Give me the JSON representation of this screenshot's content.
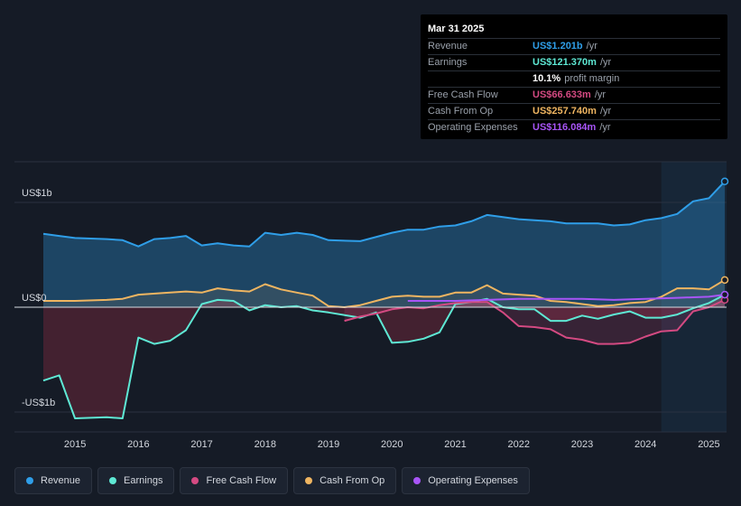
{
  "tooltip": {
    "date": "Mar 31 2025",
    "rows": [
      {
        "label": "Revenue",
        "value": "US$1.201b",
        "unit": "/yr",
        "color": "#2f9ee8"
      },
      {
        "label": "Earnings",
        "value": "US$121.370m",
        "unit": "/yr",
        "color": "#5ee8d4"
      },
      {
        "label": "",
        "value": "10.1%",
        "unit": "profit margin",
        "color": "#ffffff"
      },
      {
        "label": "Free Cash Flow",
        "value": "US$66.633m",
        "unit": "/yr",
        "color": "#d44a82"
      },
      {
        "label": "Cash From Op",
        "value": "US$257.740m",
        "unit": "/yr",
        "color": "#efb561"
      },
      {
        "label": "Operating Expenses",
        "value": "US$116.084m",
        "unit": "/yr",
        "color": "#a855f7"
      }
    ]
  },
  "legend": [
    {
      "label": "Revenue",
      "color": "#2f9ee8"
    },
    {
      "label": "Earnings",
      "color": "#5ee8d4"
    },
    {
      "label": "Free Cash Flow",
      "color": "#d44a82"
    },
    {
      "label": "Cash From Op",
      "color": "#efb561"
    },
    {
      "label": "Operating Expenses",
      "color": "#a855f7"
    }
  ],
  "chart_data": {
    "type": "area",
    "title": "",
    "y_unit": "US$ billions",
    "ylim": [
      -1.1,
      1.4
    ],
    "xlim": [
      2014.5,
      2025.25
    ],
    "y_tick_labels": [
      {
        "value": 1,
        "label": "US$1b"
      },
      {
        "value": 0,
        "label": "US$0"
      },
      {
        "value": -1,
        "label": "-US$1b"
      }
    ],
    "x_ticks": [
      2015,
      2016,
      2017,
      2018,
      2019,
      2020,
      2021,
      2022,
      2023,
      2024,
      2025
    ],
    "x_tick_labels": [
      "2015",
      "2016",
      "2017",
      "2018",
      "2019",
      "2020",
      "2021",
      "2022",
      "2023",
      "2024",
      "2025"
    ],
    "highlight_from": 2024.25,
    "series": [
      {
        "name": "Revenue",
        "color": "#2f9ee8",
        "points": [
          [
            2014.5,
            0.7
          ],
          [
            2014.75,
            0.68
          ],
          [
            2015.0,
            0.66
          ],
          [
            2015.5,
            0.65
          ],
          [
            2015.75,
            0.64
          ],
          [
            2016.0,
            0.58
          ],
          [
            2016.25,
            0.65
          ],
          [
            2016.5,
            0.66
          ],
          [
            2016.75,
            0.68
          ],
          [
            2017.0,
            0.59
          ],
          [
            2017.25,
            0.61
          ],
          [
            2017.5,
            0.59
          ],
          [
            2017.75,
            0.58
          ],
          [
            2018.0,
            0.71
          ],
          [
            2018.25,
            0.69
          ],
          [
            2018.5,
            0.71
          ],
          [
            2018.75,
            0.69
          ],
          [
            2019.0,
            0.64
          ],
          [
            2019.5,
            0.63
          ],
          [
            2020.0,
            0.71
          ],
          [
            2020.25,
            0.74
          ],
          [
            2020.5,
            0.74
          ],
          [
            2020.75,
            0.77
          ],
          [
            2021.0,
            0.78
          ],
          [
            2021.25,
            0.82
          ],
          [
            2021.5,
            0.88
          ],
          [
            2021.75,
            0.86
          ],
          [
            2022.0,
            0.84
          ],
          [
            2022.5,
            0.82
          ],
          [
            2022.75,
            0.8
          ],
          [
            2023.0,
            0.8
          ],
          [
            2023.25,
            0.8
          ],
          [
            2023.5,
            0.78
          ],
          [
            2023.75,
            0.79
          ],
          [
            2024.0,
            0.83
          ],
          [
            2024.25,
            0.85
          ],
          [
            2024.5,
            0.89
          ],
          [
            2024.75,
            1.01
          ],
          [
            2025.0,
            1.04
          ],
          [
            2025.25,
            1.2
          ]
        ]
      },
      {
        "name": "Earnings",
        "color": "#5ee8d4",
        "points": [
          [
            2014.5,
            -0.7
          ],
          [
            2014.75,
            -0.65
          ],
          [
            2015.0,
            -1.06
          ],
          [
            2015.5,
            -1.05
          ],
          [
            2015.75,
            -1.06
          ],
          [
            2016.0,
            -0.29
          ],
          [
            2016.25,
            -0.35
          ],
          [
            2016.5,
            -0.32
          ],
          [
            2016.75,
            -0.22
          ],
          [
            2017.0,
            0.03
          ],
          [
            2017.25,
            0.07
          ],
          [
            2017.5,
            0.06
          ],
          [
            2017.75,
            -0.03
          ],
          [
            2018.0,
            0.02
          ],
          [
            2018.25,
            0.0
          ],
          [
            2018.5,
            0.01
          ],
          [
            2018.75,
            -0.03
          ],
          [
            2019.0,
            -0.05
          ],
          [
            2019.5,
            -0.1
          ],
          [
            2019.75,
            -0.05
          ],
          [
            2020.0,
            -0.34
          ],
          [
            2020.25,
            -0.33
          ],
          [
            2020.5,
            -0.3
          ],
          [
            2020.75,
            -0.24
          ],
          [
            2021.0,
            0.03
          ],
          [
            2021.25,
            0.05
          ],
          [
            2021.5,
            0.08
          ],
          [
            2021.75,
            0.0
          ],
          [
            2022.0,
            -0.02
          ],
          [
            2022.25,
            -0.02
          ],
          [
            2022.5,
            -0.13
          ],
          [
            2022.75,
            -0.13
          ],
          [
            2023.0,
            -0.08
          ],
          [
            2023.25,
            -0.11
          ],
          [
            2023.5,
            -0.07
          ],
          [
            2023.75,
            -0.04
          ],
          [
            2024.0,
            -0.1
          ],
          [
            2024.25,
            -0.1
          ],
          [
            2024.5,
            -0.07
          ],
          [
            2024.75,
            -0.01
          ],
          [
            2025.0,
            0.04
          ],
          [
            2025.25,
            0.12
          ]
        ]
      },
      {
        "name": "Free Cash Flow",
        "color": "#d44a82",
        "points": [
          [
            2019.25,
            -0.13
          ],
          [
            2019.5,
            -0.09
          ],
          [
            2019.75,
            -0.06
          ],
          [
            2020.0,
            -0.02
          ],
          [
            2020.25,
            0.0
          ],
          [
            2020.5,
            -0.01
          ],
          [
            2020.75,
            0.02
          ],
          [
            2021.0,
            0.04
          ],
          [
            2021.25,
            0.05
          ],
          [
            2021.5,
            0.05
          ],
          [
            2021.75,
            -0.05
          ],
          [
            2022.0,
            -0.18
          ],
          [
            2022.25,
            -0.19
          ],
          [
            2022.5,
            -0.21
          ],
          [
            2022.75,
            -0.29
          ],
          [
            2023.0,
            -0.31
          ],
          [
            2023.25,
            -0.35
          ],
          [
            2023.5,
            -0.35
          ],
          [
            2023.75,
            -0.34
          ],
          [
            2024.0,
            -0.28
          ],
          [
            2024.25,
            -0.23
          ],
          [
            2024.5,
            -0.22
          ],
          [
            2024.75,
            -0.04
          ],
          [
            2025.0,
            0.0
          ],
          [
            2025.25,
            0.07
          ]
        ]
      },
      {
        "name": "Cash From Op",
        "color": "#efb561",
        "points": [
          [
            2014.5,
            0.06
          ],
          [
            2014.75,
            0.06
          ],
          [
            2015.0,
            0.06
          ],
          [
            2015.5,
            0.07
          ],
          [
            2015.75,
            0.08
          ],
          [
            2016.0,
            0.12
          ],
          [
            2016.5,
            0.14
          ],
          [
            2016.75,
            0.15
          ],
          [
            2017.0,
            0.14
          ],
          [
            2017.25,
            0.18
          ],
          [
            2017.5,
            0.16
          ],
          [
            2017.75,
            0.15
          ],
          [
            2018.0,
            0.22
          ],
          [
            2018.25,
            0.17
          ],
          [
            2018.5,
            0.14
          ],
          [
            2018.75,
            0.11
          ],
          [
            2019.0,
            0.01
          ],
          [
            2019.25,
            0.0
          ],
          [
            2019.5,
            0.02
          ],
          [
            2019.75,
            0.06
          ],
          [
            2020.0,
            0.1
          ],
          [
            2020.25,
            0.11
          ],
          [
            2020.5,
            0.1
          ],
          [
            2020.75,
            0.1
          ],
          [
            2021.0,
            0.14
          ],
          [
            2021.25,
            0.14
          ],
          [
            2021.5,
            0.21
          ],
          [
            2021.75,
            0.13
          ],
          [
            2022.0,
            0.12
          ],
          [
            2022.25,
            0.11
          ],
          [
            2022.5,
            0.06
          ],
          [
            2022.75,
            0.05
          ],
          [
            2023.0,
            0.03
          ],
          [
            2023.25,
            0.01
          ],
          [
            2023.5,
            0.02
          ],
          [
            2023.75,
            0.04
          ],
          [
            2024.0,
            0.05
          ],
          [
            2024.25,
            0.1
          ],
          [
            2024.5,
            0.18
          ],
          [
            2024.75,
            0.18
          ],
          [
            2025.0,
            0.17
          ],
          [
            2025.25,
            0.26
          ]
        ]
      },
      {
        "name": "Operating Expenses",
        "color": "#a855f7",
        "points": [
          [
            2020.25,
            0.06
          ],
          [
            2021.0,
            0.06
          ],
          [
            2021.5,
            0.07
          ],
          [
            2022.0,
            0.08
          ],
          [
            2022.5,
            0.08
          ],
          [
            2023.0,
            0.08
          ],
          [
            2023.5,
            0.07
          ],
          [
            2024.0,
            0.08
          ],
          [
            2024.5,
            0.09
          ],
          [
            2025.0,
            0.1
          ],
          [
            2025.25,
            0.12
          ]
        ]
      }
    ]
  }
}
